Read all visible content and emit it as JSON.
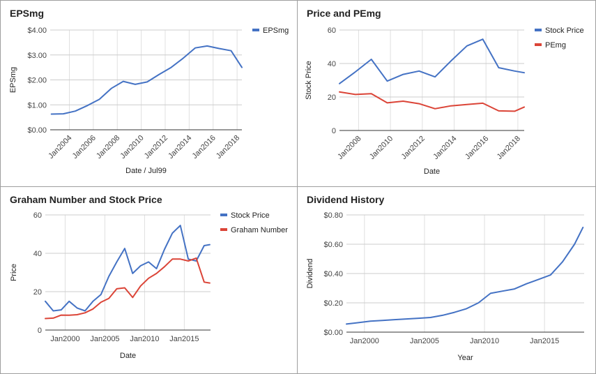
{
  "chart_data": [
    {
      "type": "line",
      "title": "EPSmg",
      "xlabel": "Date / Jul99",
      "ylabel": "EPSmg",
      "ylim": [
        0,
        4
      ],
      "yticks": [
        "$0.00",
        "$1.00",
        "$2.00",
        "$3.00",
        "$4.00"
      ],
      "xticks": [
        {
          "label": "Jan2004",
          "x": 2004
        },
        {
          "label": "Jan2006",
          "x": 2006
        },
        {
          "label": "Jan2008",
          "x": 2008
        },
        {
          "label": "Jan2010",
          "x": 2010
        },
        {
          "label": "Jan2012",
          "x": 2012
        },
        {
          "label": "Jan2014",
          "x": 2014
        },
        {
          "label": "Jan2016",
          "x": 2016
        },
        {
          "label": "Jan2018",
          "x": 2018
        }
      ],
      "xlim": [
        2002.4,
        2018.4
      ],
      "legend": "right",
      "series": [
        {
          "name": "EPSmg",
          "color": "#4472c4",
          "x": [
            2002.5,
            2003.5,
            2004.5,
            2005.5,
            2006.5,
            2007.5,
            2008.5,
            2009.5,
            2010.5,
            2011.5,
            2012.5,
            2013.5,
            2014.5,
            2015.5,
            2016.5,
            2017.5,
            2018.4
          ],
          "values": [
            0.63,
            0.64,
            0.75,
            0.97,
            1.22,
            1.66,
            1.94,
            1.82,
            1.92,
            2.22,
            2.5,
            2.87,
            3.28,
            3.36,
            3.26,
            3.17,
            2.5
          ]
        }
      ]
    },
    {
      "type": "line",
      "title": "Price and PEmg",
      "xlabel": "Date",
      "ylabel": "Stock Price",
      "ylim": [
        0,
        60
      ],
      "yticks": [
        "0",
        "20",
        "40",
        "60"
      ],
      "xticks": [
        {
          "label": "Jan2008",
          "x": 2008
        },
        {
          "label": "Jan2010",
          "x": 2010
        },
        {
          "label": "Jan2012",
          "x": 2012
        },
        {
          "label": "Jan2014",
          "x": 2014
        },
        {
          "label": "Jan2016",
          "x": 2016
        },
        {
          "label": "Jan2018",
          "x": 2018
        }
      ],
      "xlim": [
        2006.8,
        2018.4
      ],
      "legend": "right",
      "series": [
        {
          "name": "Stock Price",
          "color": "#4472c4",
          "x": [
            2006.8,
            2007.8,
            2008.8,
            2009.8,
            2010.8,
            2011.8,
            2012.8,
            2013.8,
            2014.8,
            2015.8,
            2016.8,
            2017.8,
            2018.4
          ],
          "values": [
            28,
            35,
            42.5,
            29.5,
            33.5,
            35.5,
            32,
            41.5,
            50.5,
            54.5,
            37.5,
            35.5,
            34.5
          ]
        },
        {
          "name": "PEmg",
          "color": "#db4437",
          "x": [
            2006.8,
            2007.8,
            2008.8,
            2009.8,
            2010.8,
            2011.8,
            2012.8,
            2013.8,
            2014.8,
            2015.8,
            2016.8,
            2017.8,
            2018.4
          ],
          "values": [
            23,
            21.5,
            22,
            16.5,
            17.5,
            16,
            13,
            14.7,
            15.5,
            16.3,
            11.7,
            11.5,
            14
          ]
        }
      ]
    },
    {
      "type": "line",
      "title": "Graham Number and Stock Price",
      "xlabel": "Date",
      "ylabel": "Price",
      "ylim": [
        0,
        60
      ],
      "yticks": [
        "0",
        "20",
        "40",
        "60"
      ],
      "xticks": [
        {
          "label": "Jan2000",
          "x": 2000
        },
        {
          "label": "Jan2005",
          "x": 2005
        },
        {
          "label": "Jan2010",
          "x": 2010
        },
        {
          "label": "Jan2015",
          "x": 2015
        }
      ],
      "xlim": [
        1997.5,
        2018.3
      ],
      "legend": "right",
      "series": [
        {
          "name": "Stock Price",
          "color": "#4472c4",
          "x": [
            1997.5,
            1998.5,
            1999.5,
            2000.5,
            2001.5,
            2002.5,
            2003.5,
            2004.5,
            2005.5,
            2006.5,
            2007.5,
            2008.5,
            2009.5,
            2010.5,
            2011.5,
            2012.5,
            2013.5,
            2014.5,
            2015.5,
            2016.5,
            2017.5,
            2018.2
          ],
          "values": [
            15,
            10,
            10.5,
            15,
            11.5,
            10,
            15,
            18.5,
            28,
            35.5,
            42.5,
            29.5,
            33.5,
            35.5,
            32,
            42,
            50.5,
            54.5,
            37,
            36,
            44,
            44.5
          ]
        },
        {
          "name": "Graham Number",
          "color": "#db4437",
          "x": [
            1997.5,
            1998.5,
            1999.5,
            2000.5,
            2001.5,
            2002.5,
            2003.5,
            2004.5,
            2005.5,
            2006.5,
            2007.5,
            2008.5,
            2009.5,
            2010.5,
            2011.5,
            2012.5,
            2013.5,
            2014.5,
            2015.5,
            2016.5,
            2017.5,
            2018.2
          ],
          "values": [
            6,
            6.2,
            7.8,
            7.7,
            8,
            9,
            11,
            14.5,
            16.5,
            21.5,
            22,
            17,
            23,
            27,
            29.5,
            33,
            37,
            37,
            36,
            37.5,
            25,
            24.5
          ]
        }
      ]
    },
    {
      "type": "line",
      "title": "Dividend History",
      "xlabel": "Year",
      "ylabel": "Dividend",
      "ylim": [
        0,
        0.8
      ],
      "yticks": [
        "$0.00",
        "$0.20",
        "$0.40",
        "$0.60",
        "$0.80"
      ],
      "xticks": [
        {
          "label": "Jan2000",
          "x": 2000
        },
        {
          "label": "Jan2005",
          "x": 2005
        },
        {
          "label": "Jan2010",
          "x": 2010
        },
        {
          "label": "Jan2015",
          "x": 2015
        }
      ],
      "xlim": [
        1998.5,
        2018.3
      ],
      "legend": "none",
      "series": [
        {
          "name": "",
          "color": "#4472c4",
          "x": [
            1998.5,
            1999.5,
            2000.5,
            2001.5,
            2002.5,
            2003.5,
            2004.5,
            2005.5,
            2006.5,
            2007.5,
            2008.5,
            2009.5,
            2010.5,
            2011.5,
            2012.5,
            2013.5,
            2014.5,
            2015.5,
            2016.5,
            2017.5,
            2018.2
          ],
          "values": [
            0.055,
            0.065,
            0.075,
            0.08,
            0.085,
            0.09,
            0.095,
            0.1,
            0.115,
            0.135,
            0.16,
            0.2,
            0.265,
            0.28,
            0.295,
            0.33,
            0.36,
            0.39,
            0.48,
            0.6,
            0.715
          ]
        }
      ]
    }
  ]
}
